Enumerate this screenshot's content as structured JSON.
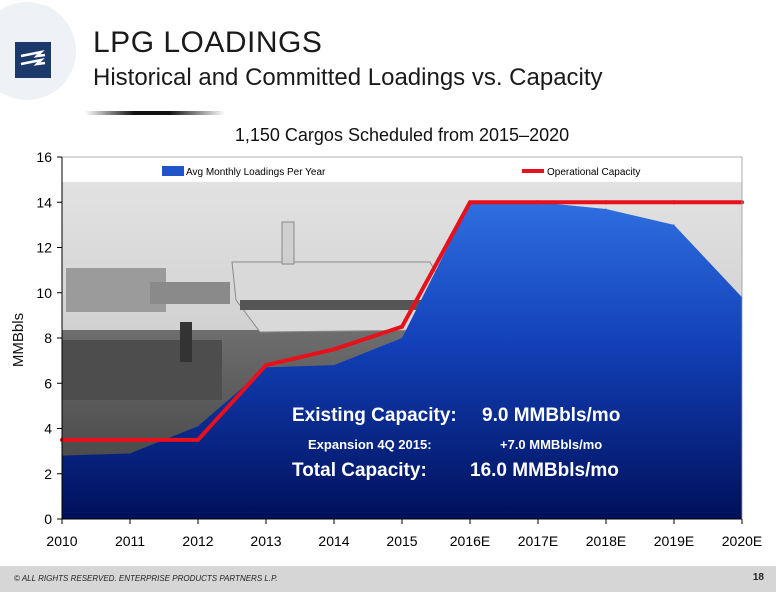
{
  "header": {
    "title": "LPG LOADINGS",
    "subtitle": "Historical and Committed Loadings vs. Capacity"
  },
  "capacity_box": {
    "existing_label": "Existing Capacity:",
    "existing_value": "9.0 MMBbls/mo",
    "expansion_label": "Expansion 4Q 2015:",
    "expansion_value": "+7.0 MMBbls/mo",
    "total_label": "Total Capacity:",
    "total_value": "16.0 MMBbls/mo"
  },
  "footer": {
    "copyright": "© ALL RIGHTS RESERVED. ENTERPRISE PRODUCTS PARTNERS L.P.",
    "page_number": "18"
  },
  "colors": {
    "area_fill_top": "#1e5cc8",
    "area_fill_bottom": "#00105a",
    "capacity_line": "#e8101a",
    "logo": "#1b3a6b"
  },
  "chart_data": {
    "type": "area",
    "title": "1,150 Cargos Scheduled from 2015–2020",
    "xlabel": "",
    "ylabel": "MMBbls",
    "ylim": [
      0,
      16
    ],
    "yticks": [
      0,
      2,
      4,
      6,
      8,
      10,
      12,
      14,
      16
    ],
    "categories": [
      "2010",
      "2011",
      "2012",
      "2013",
      "2014",
      "2015",
      "2016E",
      "2017E",
      "2018E",
      "2019E",
      "2020E"
    ],
    "legend_position": "top",
    "grid": false,
    "series": [
      {
        "name": "Avg Monthly Loadings Per Year",
        "type": "area",
        "values": [
          2.8,
          2.9,
          4.1,
          6.7,
          6.8,
          8.0,
          14.0,
          14.0,
          13.7,
          13.0,
          9.8
        ]
      },
      {
        "name": "Operational Capacity",
        "type": "line",
        "values": [
          3.5,
          3.5,
          3.5,
          6.8,
          7.5,
          8.5,
          14.0,
          14.0,
          14.0,
          14.0,
          14.0
        ]
      }
    ]
  }
}
